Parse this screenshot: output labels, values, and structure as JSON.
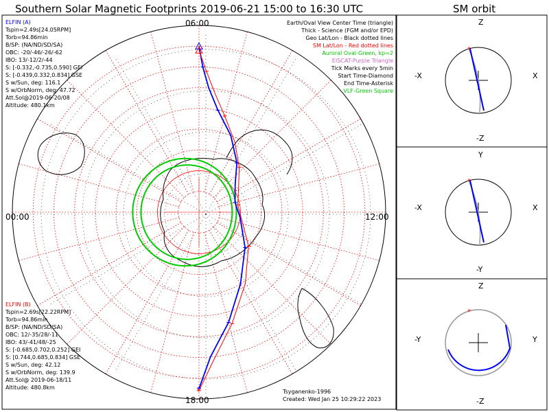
{
  "title": "Southern Solar Magnetic Footprints 2019-06-21 15:00 to 16:30 UTC",
  "sm_orbit_title": "SM orbit",
  "mlt_labels": {
    "top": "06:00",
    "left": "00:00",
    "right": "12:00",
    "bottom": "18:00"
  },
  "legend": [
    {
      "text": "Earth/Oval View Center Time (triangle)",
      "color": "#000000"
    },
    {
      "text": "Thick - Science (FGM and/or EPD)",
      "color": "#000000"
    },
    {
      "text": "Geo Lat/Lon - Black dotted lines",
      "color": "#000000"
    },
    {
      "text": "SM Lat/Lon - Red dotted lines",
      "color": "#ff0000"
    },
    {
      "text": "Auroral Oval-Green, kp=2",
      "color": "#00cc00"
    },
    {
      "text": "EISCAT-Purple Triangle",
      "color": "#cc66cc"
    },
    {
      "text": "Tick Marks every 5min",
      "color": "#000000"
    },
    {
      "text": "Start Time-Diamond",
      "color": "#000000"
    },
    {
      "text": "End Time-Asterisk",
      "color": "#000000"
    },
    {
      "text": "VLF-Green Square",
      "color": "#00cc00"
    }
  ],
  "elfin_a": {
    "name": "ELFIN (A)",
    "color": "#0000ff",
    "lines": [
      "Tspin=2.49s[24.05RPM]",
      "Torb=94.86min",
      "B/SP: (NA/ND/SD/SA)",
      "OBC: -20/-46/-26/-62",
      "IBO: 13/-12/2/-44",
      "S: [-0.332,-0.735,0.590] GEI",
      "S: [-0.439,0.332,0.834] GSE",
      "S w/Sun, deg: 116.1",
      "S w/OrbNorm, deg: 47.72",
      "Att.Sol@2019-06-20/08",
      "Altitude: 480.1km"
    ]
  },
  "elfin_b": {
    "name": "ELFIN (B)",
    "color": "#ff0000",
    "lines": [
      "Tspin=2.69s[22.22RPM]",
      "Torb=94.86min",
      "B/SP: (NA/ND/SD/SA)",
      "OBC: 12/-35/28/-11",
      "IBO: 43/-41/48/-25",
      "S: [-0.685,0.702,0.252] GEI",
      "S: [0.744,0.685,0.834] GSE",
      "S w/Sun, deg: 42.12",
      "S w/OrbNorm, deg: 139.9",
      "Att.Sol@ 2019-06-18/11",
      "Altitude: 480.8km"
    ]
  },
  "credits": {
    "model": "Tsyganenko-1996",
    "created": "Created: Wed Jan 25 10:29:22 2023"
  },
  "orbit_panels": [
    {
      "top": "Z",
      "bottom": "-Z",
      "left": "-X",
      "right": "X"
    },
    {
      "top": "Y",
      "bottom": "-Y",
      "left": "-X",
      "right": "X"
    },
    {
      "top": "Z",
      "bottom": "-Z",
      "left": "-Y",
      "right": "Y"
    }
  ],
  "colors": {
    "elfin_a": "#0000ff",
    "elfin_b": "#ff0000",
    "sm_grid": "#ff0000",
    "geo_grid": "#000000",
    "auroral_oval": "#00cc00"
  },
  "chart_data": {
    "type": "polar-footprint-map",
    "projection": "southern hemisphere, solar magnetic (SM) coordinates",
    "time_range": [
      "2019-06-21 15:00",
      "2019-06-21 16:30"
    ],
    "mlt_ticks": [
      "06:00",
      "00:00",
      "12:00",
      "18:00"
    ],
    "sm_latitude_circles_deg": [
      -90,
      -80,
      -70,
      -60,
      -50,
      -40,
      -30,
      -20,
      -10,
      0
    ],
    "sm_longitude_spokes_hours": [
      0,
      1,
      2,
      3,
      4,
      5,
      6,
      7,
      8,
      9,
      10,
      11,
      12,
      13,
      14,
      15,
      16,
      17,
      18,
      19,
      20,
      21,
      22,
      23
    ],
    "auroral_oval_kp": 2,
    "series": [
      {
        "name": "ELFIN (A)",
        "color": "#0000ff",
        "mlt_hours": [
          6.0,
          6.1,
          6.3,
          6.7,
          7.5,
          8.5,
          9.5,
          11.0,
          12.5,
          14.5,
          16.0,
          17.0,
          17.7,
          18.0
        ],
        "sm_lat_deg": [
          -10,
          -20,
          -30,
          -40,
          -50,
          -60,
          -68,
          -72,
          -70,
          -62,
          -50,
          -35,
          -20,
          -5
        ]
      },
      {
        "name": "ELFIN (B)",
        "color": "#ff0000",
        "mlt_hours": [
          6.0,
          6.2,
          6.5,
          7.0,
          7.8,
          8.8,
          10.0,
          11.3,
          12.7,
          14.3,
          15.8,
          16.9,
          17.6,
          18.0
        ],
        "sm_lat_deg": [
          -12,
          -22,
          -32,
          -42,
          -52,
          -61,
          -68,
          -71,
          -69,
          -61,
          -49,
          -34,
          -19,
          -4
        ]
      }
    ]
  }
}
